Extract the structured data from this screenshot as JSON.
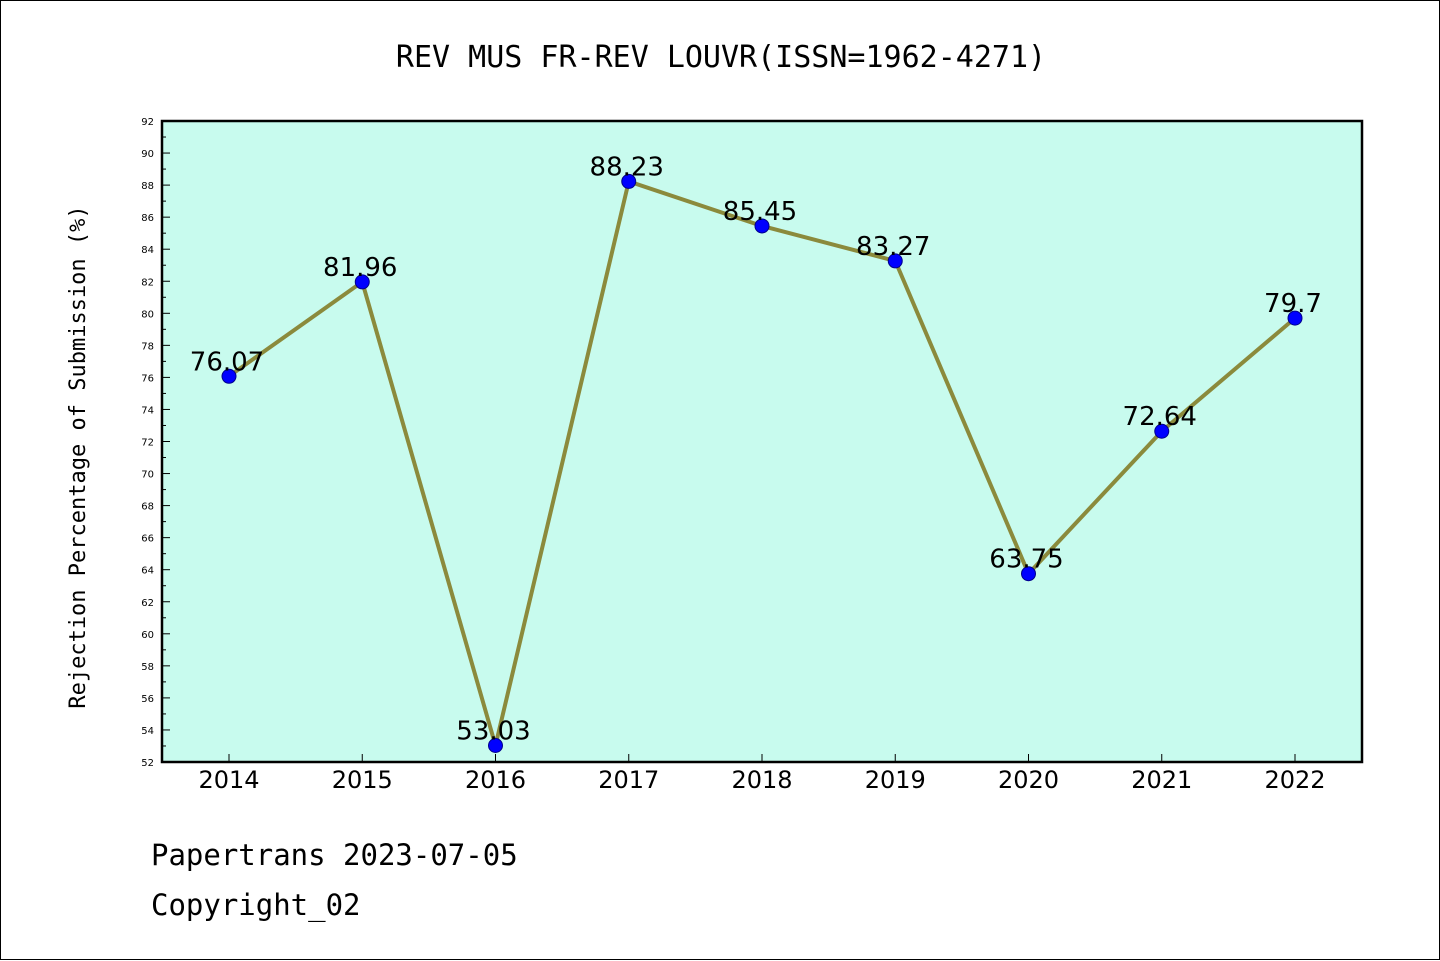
{
  "chart_data": {
    "type": "line",
    "title": "REV MUS FR-REV LOUVR(ISSN=1962-4271)",
    "xlabel": "",
    "ylabel": "Rejection Percentage of Submission (%)",
    "categories": [
      "2014",
      "2015",
      "2016",
      "2017",
      "2018",
      "2019",
      "2020",
      "2021",
      "2022"
    ],
    "series": [
      {
        "values": [
          76.07,
          81.96,
          53.03,
          88.23,
          85.45,
          83.27,
          63.75,
          72.64,
          79.7
        ],
        "labels": [
          "76.07",
          "81.96",
          "53.03",
          "88.23",
          "85.45",
          "83.27",
          "63.75",
          "72.64",
          "79.7"
        ]
      }
    ],
    "ylim": [
      52,
      92
    ],
    "yticks": [
      "52",
      "54",
      "56",
      "58",
      "60",
      "62",
      "64",
      "66",
      "68",
      "70",
      "72",
      "74",
      "76",
      "78",
      "80",
      "82",
      "84",
      "86",
      "88",
      "90",
      "92"
    ],
    "grid": false,
    "colors": {
      "plot_bg": "#c8fbee",
      "line": "#8b8a3c",
      "marker": "#0000ff",
      "marker_edge": "#00008b"
    }
  },
  "footer": {
    "line1": "Papertrans 2023-07-05",
    "line2": "Copyright_02"
  }
}
